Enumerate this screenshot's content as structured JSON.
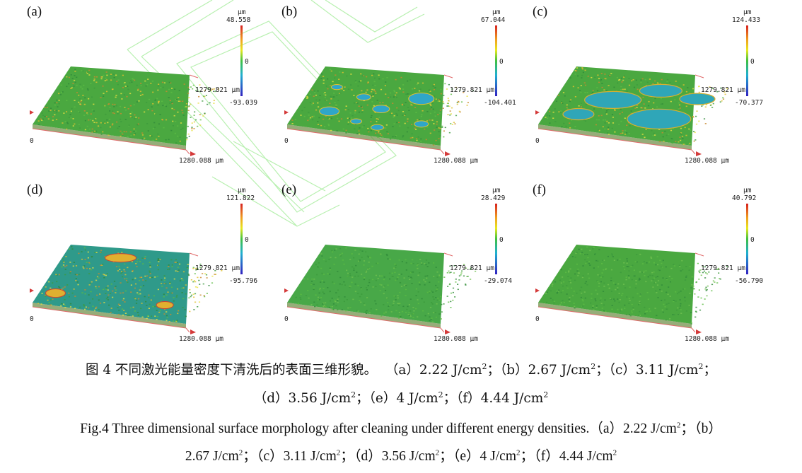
{
  "panels": [
    {
      "label": "(a)",
      "unit": "μm",
      "max": "48.558",
      "zero": "0",
      "min": "-93.039",
      "y_extent": "1279.821 μm",
      "x_extent": "1280.088 μm",
      "origin": "0",
      "surface": "rough"
    },
    {
      "label": "(b)",
      "unit": "μm",
      "max": "67.044",
      "zero": "0",
      "min": "-104.401",
      "y_extent": "1279.821 μm",
      "x_extent": "1280.088 μm",
      "origin": "0",
      "surface": "spots"
    },
    {
      "label": "(c)",
      "unit": "μm",
      "max": "124.433",
      "zero": "0",
      "min": "-70.377",
      "y_extent": "1279.821 μm",
      "x_extent": "1280.088 μm",
      "origin": "0",
      "surface": "patches"
    },
    {
      "label": "(d)",
      "unit": "μm",
      "max": "121.822",
      "zero": "0",
      "min": "-95.796",
      "y_extent": "1279.821 μm",
      "x_extent": "1280.088 μm",
      "origin": "0",
      "surface": "mostly-clean"
    },
    {
      "label": "(e)",
      "unit": "μm",
      "max": "28.429",
      "zero": "0",
      "min": "-29.074",
      "y_extent": "1279.821 μm",
      "x_extent": "1280.088 μm",
      "origin": "0",
      "surface": "clean"
    },
    {
      "label": "(f)",
      "unit": "μm",
      "max": "40.792",
      "zero": "0",
      "min": "-56.790",
      "y_extent": "1279.821 μm",
      "x_extent": "1280.088 μm",
      "origin": "0",
      "surface": "clean-green"
    }
  ],
  "caption_zh": {
    "prefix": "图 4  不同激光能量密度下清洗后的表面三维形貌。",
    "line1_items": [
      "（a）2.22 J/cm",
      "；（b）2.67 J/cm",
      "；（c）3.11 J/cm",
      "；"
    ],
    "line2_items": [
      "（d）3.56 J/cm",
      "；（e）4 J/cm",
      "；（f）4.44 J/cm",
      ""
    ]
  },
  "caption_en": {
    "line1": "Fig.4 Three dimensional surface morphology after cleaning under different energy densities.（a）2.22 J/cm",
    "line1b": "；（b）",
    "line2_items": [
      "2.67 J/cm",
      "；（c）3.11 J/cm",
      "；（d）3.56 J/cm",
      "；（e）4 J/cm",
      "；（f）4.44 J/cm",
      ""
    ]
  },
  "superscript": "2",
  "colors": {
    "surface_green": "#3fa83a",
    "clean_cyan": "#2fa6b8",
    "frame_red": "#d43a3a",
    "watermark_green": "#b8f0b0"
  }
}
